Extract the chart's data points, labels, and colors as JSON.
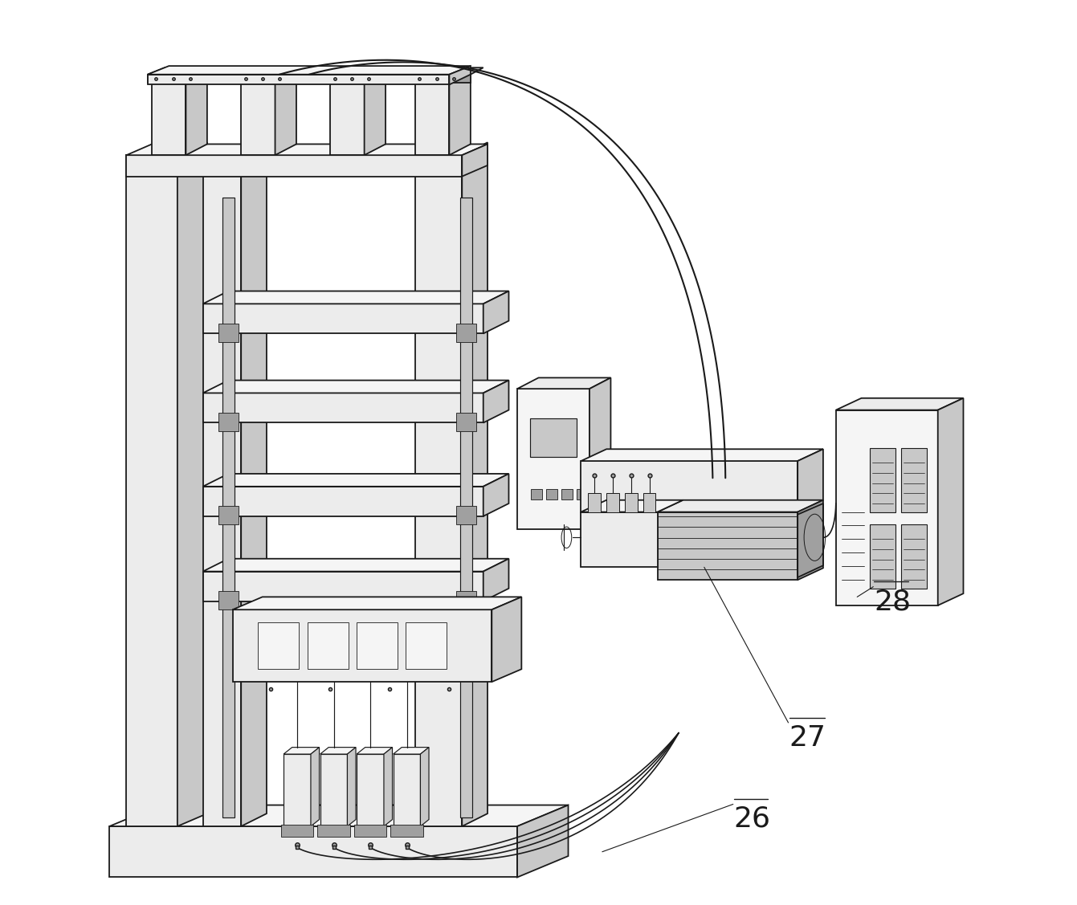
{
  "bg_color": "#ffffff",
  "line_color": "#1a1a1a",
  "fill_light": "#ececec",
  "fill_mid": "#c8c8c8",
  "fill_dark": "#a0a0a0",
  "fill_white": "#f5f5f5",
  "label_26": "26",
  "label_27": "27",
  "label_28": "28",
  "label_fontsize": 26,
  "lw_main": 1.3,
  "lw_thin": 0.85,
  "lw_pipe": 1.5,
  "fig_width": 13.41,
  "fig_height": 11.27,
  "dpi": 100
}
